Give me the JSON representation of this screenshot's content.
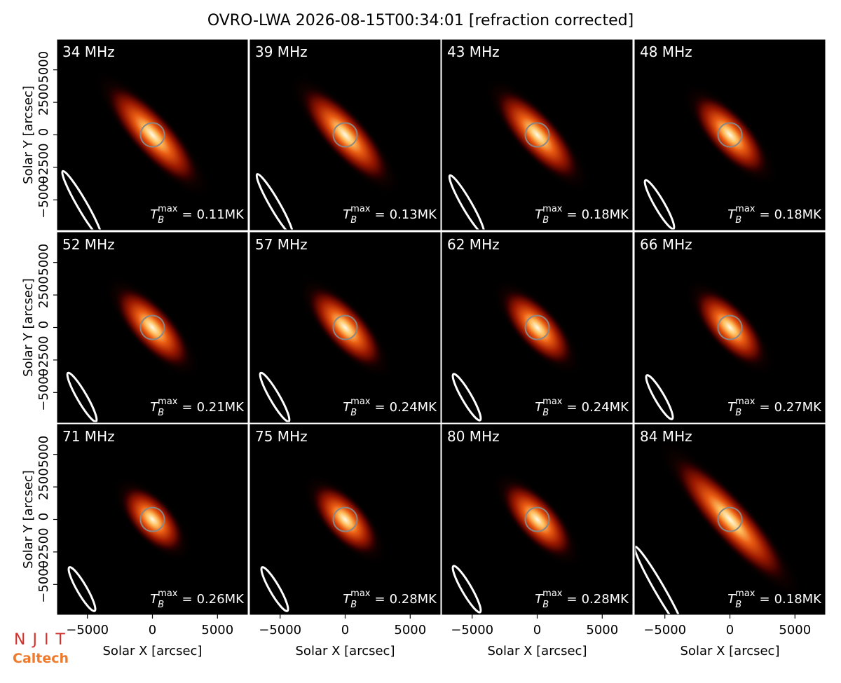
{
  "chart_data": {
    "type": "image",
    "title": "OVRO-LWA 2026-08-15T00:34:01 [refraction corrected]",
    "xlabel": "Solar X [arcsec]",
    "ylabel": "Solar Y [arcsec]",
    "xlim": [
      -7300,
      7300
    ],
    "ylim": [
      -7300,
      7300
    ],
    "xticks": [
      {
        "value": -5000,
        "label": "−5000"
      },
      0,
      5000
    ],
    "yticks": [
      {
        "value": -5000,
        "label": "−5000"
      },
      {
        "value": -2500,
        "label": "−2500"
      },
      0,
      2500,
      5000
    ],
    "tb_symbol": {
      "base": "T",
      "sub": "B",
      "sup": "max",
      "eq": "="
    },
    "panels": [
      {
        "label": "34 MHz",
        "tmax": 0.11,
        "tmax_label": "0.11MK"
      },
      {
        "label": "39 MHz",
        "tmax": 0.13,
        "tmax_label": "0.13MK"
      },
      {
        "label": "43 MHz",
        "tmax": 0.18,
        "tmax_label": "0.18MK"
      },
      {
        "label": "48 MHz",
        "tmax": 0.18,
        "tmax_label": "0.18MK"
      },
      {
        "label": "52 MHz",
        "tmax": 0.21,
        "tmax_label": "0.21MK"
      },
      {
        "label": "57 MHz",
        "tmax": 0.24,
        "tmax_label": "0.24MK"
      },
      {
        "label": "62 MHz",
        "tmax": 0.24,
        "tmax_label": "0.24MK"
      },
      {
        "label": "66 MHz",
        "tmax": 0.27,
        "tmax_label": "0.27MK"
      },
      {
        "label": "71 MHz",
        "tmax": 0.26,
        "tmax_label": "0.26MK"
      },
      {
        "label": "75 MHz",
        "tmax": 0.28,
        "tmax_label": "0.28MK"
      },
      {
        "label": "80 MHz",
        "tmax": 0.28,
        "tmax_label": "0.28MK"
      },
      {
        "label": "84 MHz",
        "tmax": 0.18,
        "tmax_label": "0.18MK"
      }
    ],
    "logos": [
      "NJIT",
      "Caltech"
    ]
  }
}
